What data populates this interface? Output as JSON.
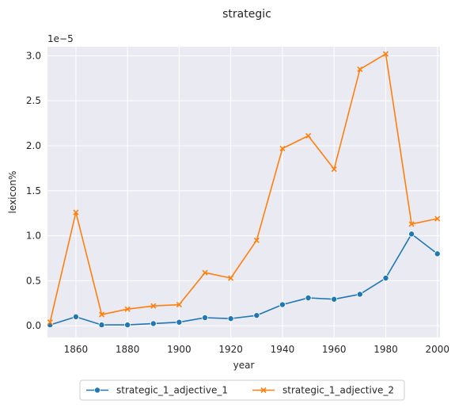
{
  "chart_data": {
    "type": "line",
    "title": "strategic",
    "xlabel": "year",
    "ylabel": "lexicon%",
    "y_scale_label": "1e−5",
    "x": [
      1850,
      1860,
      1870,
      1880,
      1890,
      1900,
      1910,
      1920,
      1930,
      1940,
      1950,
      1960,
      1970,
      1980,
      1990,
      2000
    ],
    "xlim": [
      1849,
      2001
    ],
    "ylim": [
      -0.13,
      3.1
    ],
    "x_ticks": [
      1860,
      1880,
      1900,
      1920,
      1940,
      1960,
      1980,
      2000
    ],
    "x_tick_labels": [
      "1860",
      "1880",
      "1900",
      "1920",
      "1940",
      "1960",
      "1980",
      "2000"
    ],
    "y_ticks": [
      0.0,
      0.5,
      1.0,
      1.5,
      2.0,
      2.5,
      3.0
    ],
    "y_tick_labels": [
      "0.0",
      "0.5",
      "1.0",
      "1.5",
      "2.0",
      "2.5",
      "3.0"
    ],
    "grid": true,
    "legend_position": "bottom-center",
    "series": [
      {
        "name": "strategic_1_adjective_1",
        "color": "#1f77b4",
        "marker": "circle",
        "values": [
          0.01,
          0.1,
          0.01,
          0.01,
          0.025,
          0.04,
          0.09,
          0.08,
          0.115,
          0.235,
          0.31,
          0.295,
          0.35,
          0.53,
          1.02,
          0.8
        ]
      },
      {
        "name": "strategic_1_adjective_2",
        "color": "#ff7f0e",
        "marker": "x",
        "values": [
          0.04,
          1.26,
          0.125,
          0.185,
          0.22,
          0.235,
          0.59,
          0.53,
          0.95,
          1.97,
          2.11,
          1.74,
          2.85,
          3.02,
          1.13,
          1.19
        ]
      }
    ]
  }
}
